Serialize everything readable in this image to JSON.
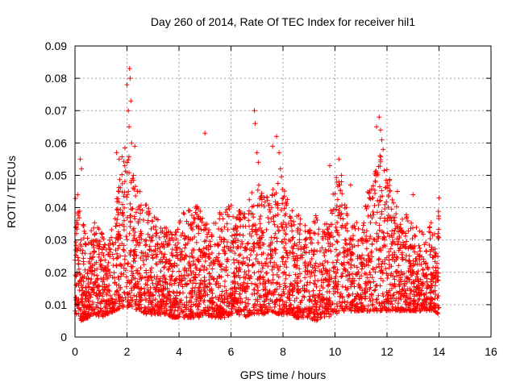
{
  "chart_data": {
    "type": "scatter",
    "title": "Day 260 of 2014, Rate Of TEC Index for receiver hil1",
    "xlabel": "GPS time / hours",
    "ylabel": "ROTI / TECUs",
    "xlim": [
      0,
      16
    ],
    "ylim": [
      0,
      0.09
    ],
    "xticks": [
      "0",
      "2",
      "4",
      "6",
      "8",
      "10",
      "12",
      "14",
      "16"
    ],
    "yticks": [
      "0",
      "0.01",
      "0.02",
      "0.03",
      "0.04",
      "0.05",
      "0.06",
      "0.07",
      "0.08",
      "0.09"
    ],
    "grid": true,
    "marker": "+",
    "color": "#ff0000",
    "series": [
      {
        "name": "ROTI",
        "envelope": {
          "x": [
            0,
            0.25,
            0.5,
            0.75,
            1.0,
            1.25,
            1.5,
            1.75,
            2.0,
            2.25,
            2.5,
            2.75,
            3.0,
            3.25,
            3.5,
            3.75,
            4.0,
            4.25,
            4.5,
            4.75,
            5.0,
            5.25,
            5.5,
            5.75,
            6.0,
            6.25,
            6.5,
            6.75,
            7.0,
            7.25,
            7.5,
            7.75,
            8.0,
            8.25,
            8.5,
            8.75,
            9.0,
            9.25,
            9.5,
            9.75,
            10.0,
            10.25,
            10.5,
            10.75,
            11.0,
            11.25,
            11.5,
            11.75,
            12.0,
            12.25,
            12.5,
            12.75,
            13.0,
            13.25,
            13.5,
            13.75,
            14.0
          ],
          "y_low": [
            0.007,
            0.005,
            0.006,
            0.007,
            0.006,
            0.007,
            0.008,
            0.009,
            0.009,
            0.009,
            0.008,
            0.007,
            0.007,
            0.007,
            0.007,
            0.006,
            0.006,
            0.006,
            0.006,
            0.006,
            0.007,
            0.006,
            0.006,
            0.006,
            0.007,
            0.007,
            0.006,
            0.007,
            0.007,
            0.007,
            0.008,
            0.007,
            0.007,
            0.007,
            0.006,
            0.006,
            0.006,
            0.005,
            0.006,
            0.006,
            0.007,
            0.008,
            0.008,
            0.008,
            0.008,
            0.008,
            0.008,
            0.008,
            0.008,
            0.008,
            0.008,
            0.008,
            0.008,
            0.008,
            0.008,
            0.008,
            0.007
          ],
          "y_high": [
            0.045,
            0.038,
            0.03,
            0.036,
            0.034,
            0.028,
            0.037,
            0.056,
            0.06,
            0.05,
            0.045,
            0.042,
            0.038,
            0.036,
            0.034,
            0.032,
            0.035,
            0.04,
            0.045,
            0.04,
            0.036,
            0.034,
            0.038,
            0.04,
            0.042,
            0.04,
            0.04,
            0.045,
            0.048,
            0.045,
            0.042,
            0.05,
            0.05,
            0.04,
            0.038,
            0.038,
            0.035,
            0.038,
            0.035,
            0.036,
            0.052,
            0.048,
            0.038,
            0.035,
            0.04,
            0.045,
            0.05,
            0.058,
            0.052,
            0.045,
            0.04,
            0.038,
            0.035,
            0.033,
            0.033,
            0.036,
            0.04
          ]
        },
        "spikes": [
          {
            "x": 0.1,
            "y": 0.044
          },
          {
            "x": 0.2,
            "y": 0.055
          },
          {
            "x": 0.25,
            "y": 0.052
          },
          {
            "x": 2.0,
            "y": 0.078
          },
          {
            "x": 2.05,
            "y": 0.07
          },
          {
            "x": 2.08,
            "y": 0.065
          },
          {
            "x": 2.1,
            "y": 0.083
          },
          {
            "x": 2.12,
            "y": 0.08
          },
          {
            "x": 2.15,
            "y": 0.073
          },
          {
            "x": 2.18,
            "y": 0.06
          },
          {
            "x": 2.3,
            "y": 0.059
          },
          {
            "x": 5.0,
            "y": 0.063
          },
          {
            "x": 6.9,
            "y": 0.07
          },
          {
            "x": 6.93,
            "y": 0.066
          },
          {
            "x": 7.0,
            "y": 0.057
          },
          {
            "x": 7.05,
            "y": 0.054
          },
          {
            "x": 7.6,
            "y": 0.059
          },
          {
            "x": 7.75,
            "y": 0.062
          },
          {
            "x": 7.85,
            "y": 0.057
          },
          {
            "x": 7.9,
            "y": 0.052
          },
          {
            "x": 9.8,
            "y": 0.053
          },
          {
            "x": 10.15,
            "y": 0.055
          },
          {
            "x": 10.25,
            "y": 0.05
          },
          {
            "x": 11.6,
            "y": 0.065
          },
          {
            "x": 11.7,
            "y": 0.068
          },
          {
            "x": 11.75,
            "y": 0.064
          },
          {
            "x": 11.8,
            "y": 0.061
          },
          {
            "x": 11.85,
            "y": 0.058
          },
          {
            "x": 12.4,
            "y": 0.045
          },
          {
            "x": 1.6,
            "y": 0.057
          },
          {
            "x": 1.7,
            "y": 0.055
          },
          {
            "x": 10.6,
            "y": 0.047
          },
          {
            "x": 13.0,
            "y": 0.044
          },
          {
            "x": 14.0,
            "y": 0.043
          }
        ]
      }
    ]
  }
}
